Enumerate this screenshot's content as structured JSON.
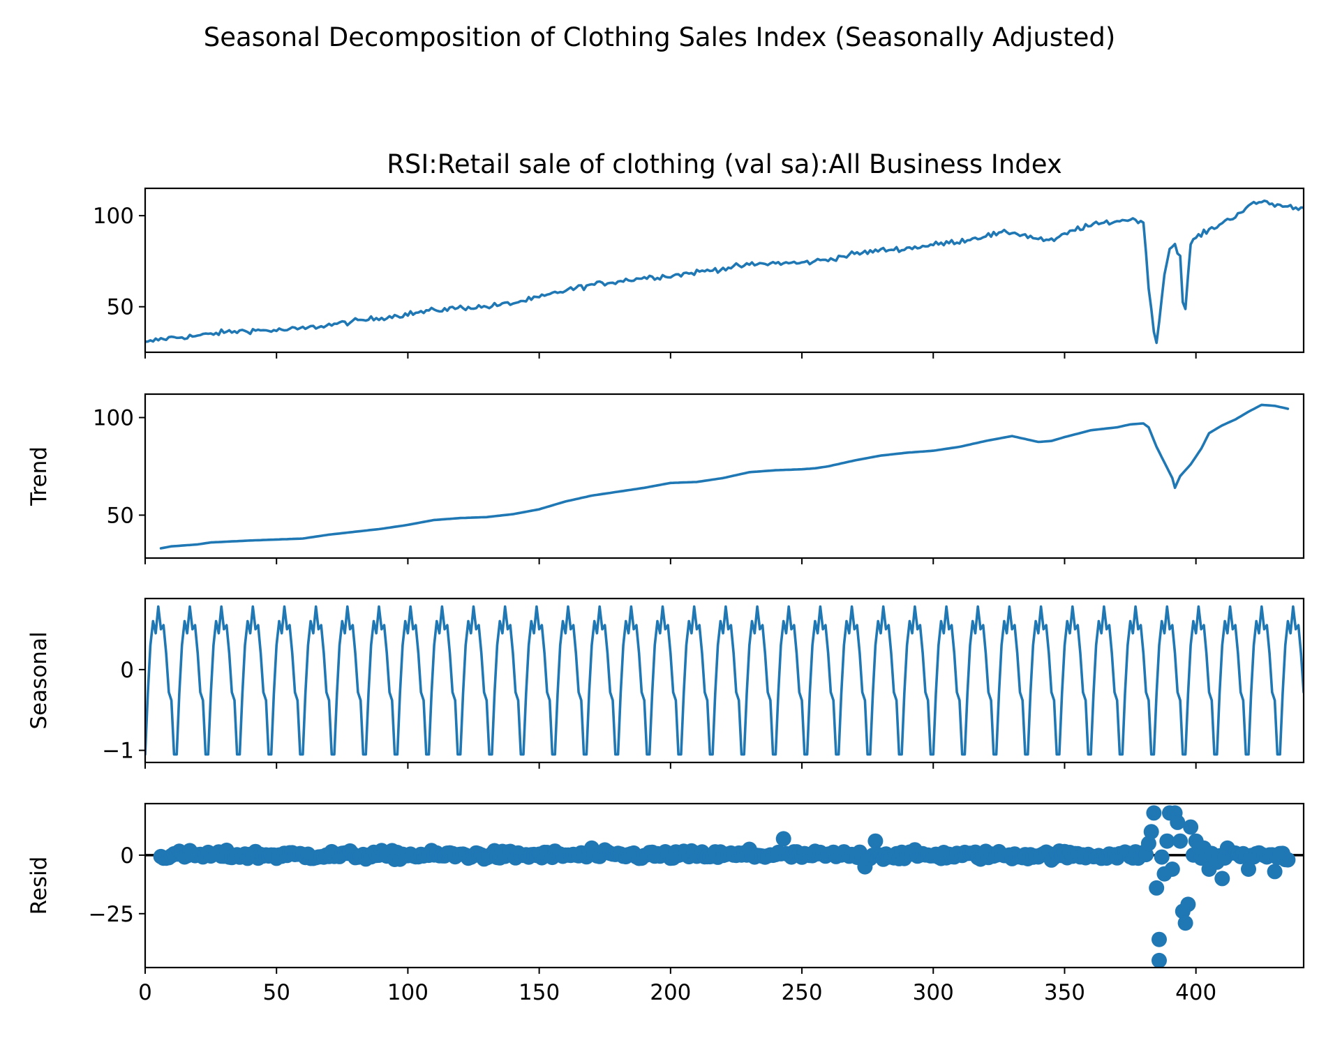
{
  "chart_data": {
    "type": "line",
    "title": "Seasonal Decomposition of Clothing Sales Index (Seasonally Adjusted)",
    "color": "#1f77b4",
    "shared_x": {
      "lim": [
        0,
        441
      ],
      "ticks": [
        0,
        50,
        100,
        150,
        200,
        250,
        300,
        350,
        400
      ],
      "tick_labels": [
        "0",
        "50",
        "100",
        "150",
        "200",
        "250",
        "300",
        "350",
        "400"
      ]
    },
    "grid": false,
    "panels": [
      {
        "id": "observed",
        "title": "RSI:Retail sale of clothing (val sa):All Business Index",
        "ylabel": "",
        "type": "line",
        "ylim": [
          25,
          115
        ],
        "yticks": [
          50,
          100
        ],
        "ytick_labels": [
          "50",
          "100"
        ],
        "anchors": [
          [
            0,
            30
          ],
          [
            5,
            32
          ],
          [
            10,
            33
          ],
          [
            20,
            34
          ],
          [
            30,
            36
          ],
          [
            40,
            37
          ],
          [
            50,
            37
          ],
          [
            60,
            38
          ],
          [
            70,
            40
          ],
          [
            80,
            42
          ],
          [
            90,
            44
          ],
          [
            100,
            46
          ],
          [
            110,
            48
          ],
          [
            120,
            49.5
          ],
          [
            130,
            50
          ],
          [
            140,
            52
          ],
          [
            150,
            55
          ],
          [
            160,
            59
          ],
          [
            170,
            62
          ],
          [
            180,
            64
          ],
          [
            190,
            66
          ],
          [
            200,
            67
          ],
          [
            210,
            69
          ],
          [
            220,
            71
          ],
          [
            230,
            73
          ],
          [
            240,
            74
          ],
          [
            250,
            74
          ],
          [
            260,
            76
          ],
          [
            270,
            79
          ],
          [
            280,
            81
          ],
          [
            290,
            82
          ],
          [
            300,
            84
          ],
          [
            310,
            86
          ],
          [
            320,
            89
          ],
          [
            330,
            91
          ],
          [
            338,
            88
          ],
          [
            345,
            86
          ],
          [
            355,
            93
          ],
          [
            365,
            96
          ],
          [
            375,
            98
          ],
          [
            380,
            97
          ],
          [
            382,
            60
          ],
          [
            384,
            38
          ],
          [
            385,
            30
          ],
          [
            386,
            42
          ],
          [
            388,
            68
          ],
          [
            390,
            82
          ],
          [
            392,
            84
          ],
          [
            394,
            78
          ],
          [
            395,
            52
          ],
          [
            396,
            48
          ],
          [
            398,
            85
          ],
          [
            400,
            88
          ],
          [
            405,
            92
          ],
          [
            410,
            96
          ],
          [
            415,
            100
          ],
          [
            420,
            105
          ],
          [
            425,
            108
          ],
          [
            430,
            106
          ],
          [
            435,
            105
          ],
          [
            441,
            104
          ]
        ],
        "noise": 1.3
      },
      {
        "id": "trend",
        "title": "",
        "ylabel": "Trend",
        "type": "line",
        "ylim": [
          28,
          112
        ],
        "yticks": [
          50,
          100
        ],
        "ytick_labels": [
          "50",
          "100"
        ],
        "x_range": [
          6,
          435
        ],
        "anchors": [
          [
            6,
            33
          ],
          [
            10,
            34
          ],
          [
            20,
            35
          ],
          [
            25,
            36
          ],
          [
            40,
            37
          ],
          [
            50,
            37.5
          ],
          [
            60,
            38
          ],
          [
            70,
            40
          ],
          [
            80,
            41.5
          ],
          [
            90,
            43
          ],
          [
            100,
            45
          ],
          [
            110,
            47.5
          ],
          [
            120,
            48.5
          ],
          [
            130,
            49
          ],
          [
            140,
            50.5
          ],
          [
            150,
            53
          ],
          [
            160,
            57
          ],
          [
            170,
            60
          ],
          [
            180,
            62
          ],
          [
            190,
            64
          ],
          [
            200,
            66.5
          ],
          [
            210,
            67
          ],
          [
            220,
            69
          ],
          [
            230,
            72
          ],
          [
            240,
            73
          ],
          [
            250,
            73.5
          ],
          [
            255,
            74
          ],
          [
            260,
            75
          ],
          [
            270,
            78
          ],
          [
            280,
            80.5
          ],
          [
            290,
            82
          ],
          [
            300,
            83
          ],
          [
            310,
            85
          ],
          [
            320,
            88
          ],
          [
            330,
            90.5
          ],
          [
            335,
            89
          ],
          [
            340,
            87.5
          ],
          [
            345,
            88
          ],
          [
            350,
            90
          ],
          [
            360,
            93.5
          ],
          [
            370,
            95
          ],
          [
            375,
            96.5
          ],
          [
            380,
            97
          ],
          [
            382,
            95
          ],
          [
            385,
            85
          ],
          [
            388,
            77
          ],
          [
            391,
            69
          ],
          [
            392,
            64
          ],
          [
            394,
            70
          ],
          [
            398,
            76
          ],
          [
            402,
            84
          ],
          [
            405,
            92
          ],
          [
            410,
            96
          ],
          [
            415,
            99
          ],
          [
            420,
            103
          ],
          [
            425,
            106.5
          ],
          [
            430,
            106
          ],
          [
            435,
            104.5
          ]
        ]
      },
      {
        "id": "seasonal",
        "title": "",
        "ylabel": "Seasonal",
        "type": "line",
        "ylim": [
          -1.15,
          0.88
        ],
        "yticks": [
          -1,
          0
        ],
        "ytick_labels": [
          "−1",
          "0"
        ],
        "period": 12,
        "pattern": [
          -1.05,
          -0.3,
          0.3,
          0.6,
          0.45,
          0.78,
          0.5,
          0.55,
          0.2,
          -0.28,
          -0.38,
          -1.05
        ]
      },
      {
        "id": "resid",
        "title": "",
        "ylabel": "Resid",
        "type": "scatter",
        "ylim": [
          -48,
          22
        ],
        "yticks": [
          -25,
          0
        ],
        "ytick_labels": [
          "−25",
          "0"
        ],
        "zero_line": true,
        "x_range": [
          6,
          435
        ],
        "noise": 1.3,
        "spikes": [
          [
            170,
            3
          ],
          [
            230,
            2.5
          ],
          [
            243,
            7
          ],
          [
            274,
            -5
          ],
          [
            278,
            6
          ],
          [
            382,
            5
          ],
          [
            383,
            10
          ],
          [
            384,
            18
          ],
          [
            385,
            -14
          ],
          [
            386,
            -36
          ],
          [
            386,
            -45
          ],
          [
            388,
            -8
          ],
          [
            389,
            6
          ],
          [
            390,
            18
          ],
          [
            391,
            -6
          ],
          [
            392,
            18
          ],
          [
            393,
            14
          ],
          [
            394,
            6
          ],
          [
            395,
            -24
          ],
          [
            396,
            -29
          ],
          [
            397,
            -21
          ],
          [
            398,
            12
          ],
          [
            400,
            6
          ],
          [
            403,
            3
          ],
          [
            405,
            -6
          ],
          [
            408,
            -3
          ],
          [
            410,
            -10
          ],
          [
            412,
            3
          ],
          [
            420,
            -6
          ],
          [
            430,
            -7
          ],
          [
            435,
            -2
          ]
        ]
      }
    ]
  }
}
